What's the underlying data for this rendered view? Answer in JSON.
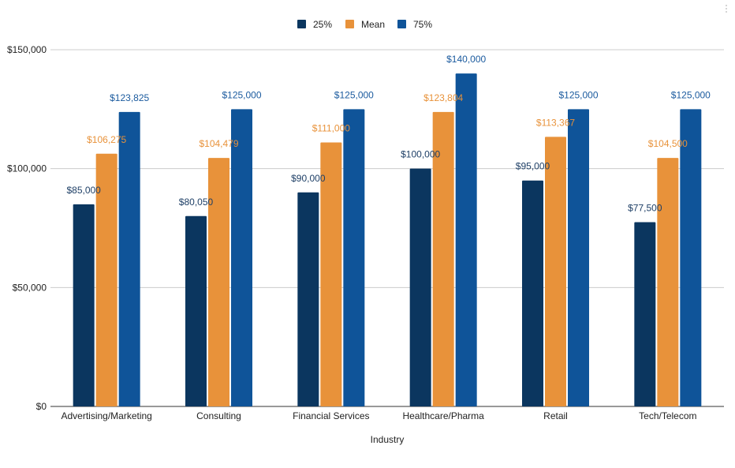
{
  "chart_data": {
    "type": "bar",
    "title": "",
    "xlabel": "Industry",
    "ylabel": "",
    "categories": [
      "Advertising/Marketing",
      "Consulting",
      "Financial Services",
      "Healthcare/Pharma",
      "Retail",
      "Tech/Telecom"
    ],
    "series": [
      {
        "name": "25%",
        "color": "#0b365f",
        "label_color": "#1e3f66",
        "values": [
          85000,
          80050,
          90000,
          100000,
          95000,
          77500
        ],
        "labels": [
          "$85,000",
          "$80,050",
          "$90,000",
          "$100,000",
          "$95,000",
          "$77,500"
        ]
      },
      {
        "name": "Mean",
        "color": "#e8923a",
        "label_color": "#e8923a",
        "values": [
          106275,
          104479,
          111000,
          123804,
          113367,
          104500
        ],
        "labels": [
          "$106,275",
          "$104,479",
          "$111,000",
          "$123,804",
          "$113,367",
          "$104,500"
        ]
      },
      {
        "name": "75%",
        "color": "#0f5499",
        "label_color": "#1a5a9e",
        "values": [
          123825,
          125000,
          125000,
          140000,
          125000,
          125000
        ],
        "labels": [
          "$123,825",
          "$125,000",
          "$125,000",
          "$140,000",
          "$125,000",
          "$125,000"
        ]
      }
    ],
    "ylim": [
      0,
      150000
    ],
    "yticks": [
      0,
      50000,
      100000,
      150000
    ],
    "ytick_labels": [
      "$0",
      "$50,000",
      "$100,000",
      "$150,000"
    ],
    "grid": true,
    "legend_position": "top-center"
  }
}
